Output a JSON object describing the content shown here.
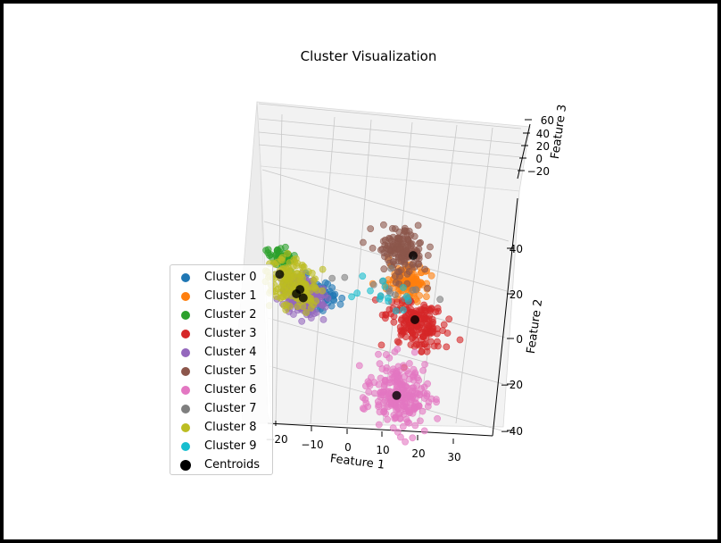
{
  "chart_data": {
    "type": "scatter",
    "projection": "3d",
    "title": "Cluster Visualization",
    "xlabel": "Feature 1",
    "ylabel": "Feature 2",
    "zlabel": "Feature 3",
    "x_ticks": [
      "−20",
      "−10",
      "0",
      "10",
      "20",
      "30"
    ],
    "y_ticks": [
      "40",
      "20",
      "0",
      "−20",
      "−40"
    ],
    "z_ticks": [
      "60",
      "40",
      "20",
      "0",
      "−20"
    ],
    "xlim": [
      -22,
      37
    ],
    "ylim": [
      -42,
      46
    ],
    "zlim": [
      -30,
      62
    ],
    "grid": true,
    "legend_position": "lower-left",
    "series": [
      {
        "name": "Cluster 0",
        "color": "#1f77b4",
        "center": [
          -5,
          15,
          4
        ],
        "spread": [
          4,
          3,
          3
        ],
        "n": 80
      },
      {
        "name": "Cluster 1",
        "color": "#ff7f0e",
        "center": [
          22,
          28,
          10
        ],
        "spread": [
          3,
          4,
          3
        ],
        "n": 110
      },
      {
        "name": "Cluster 2",
        "color": "#2ca02c",
        "center": [
          -15,
          28,
          2
        ],
        "spread": [
          2,
          2,
          2
        ],
        "n": 45
      },
      {
        "name": "Cluster 3",
        "color": "#d62728",
        "center": [
          24,
          14,
          2
        ],
        "spread": [
          4,
          5,
          3
        ],
        "n": 180
      },
      {
        "name": "Cluster 4",
        "color": "#9467bd",
        "center": [
          -8,
          15,
          -3
        ],
        "spread": [
          3,
          4,
          3
        ],
        "n": 200
      },
      {
        "name": "Cluster 5",
        "color": "#8c564b",
        "center": [
          20,
          34,
          30
        ],
        "spread": [
          3,
          4,
          8
        ],
        "n": 140
      },
      {
        "name": "Cluster 6",
        "color": "#e377c2",
        "center": [
          21,
          -18,
          -4
        ],
        "spread": [
          4,
          7,
          2
        ],
        "n": 240
      },
      {
        "name": "Cluster 7",
        "color": "#7f7f7f",
        "center": [
          14,
          24,
          6
        ],
        "spread": [
          6,
          4,
          4
        ],
        "n": 15
      },
      {
        "name": "Cluster 8",
        "color": "#bcbd22",
        "center": [
          -11,
          18,
          0
        ],
        "spread": [
          4,
          5,
          3
        ],
        "n": 160
      },
      {
        "name": "Cluster 9",
        "color": "#17becf",
        "center": [
          16,
          22,
          4
        ],
        "spread": [
          4,
          4,
          3
        ],
        "n": 15
      }
    ],
    "centroids": {
      "name": "Centroids",
      "color": "#000000",
      "points": [
        [
          -15,
          20,
          2
        ],
        [
          -9,
          16,
          1
        ],
        [
          -10,
          14,
          0
        ],
        [
          -8,
          13,
          0
        ],
        [
          23,
          36,
          22
        ],
        [
          24,
          16,
          0
        ],
        [
          20,
          -18,
          -4
        ]
      ]
    }
  }
}
